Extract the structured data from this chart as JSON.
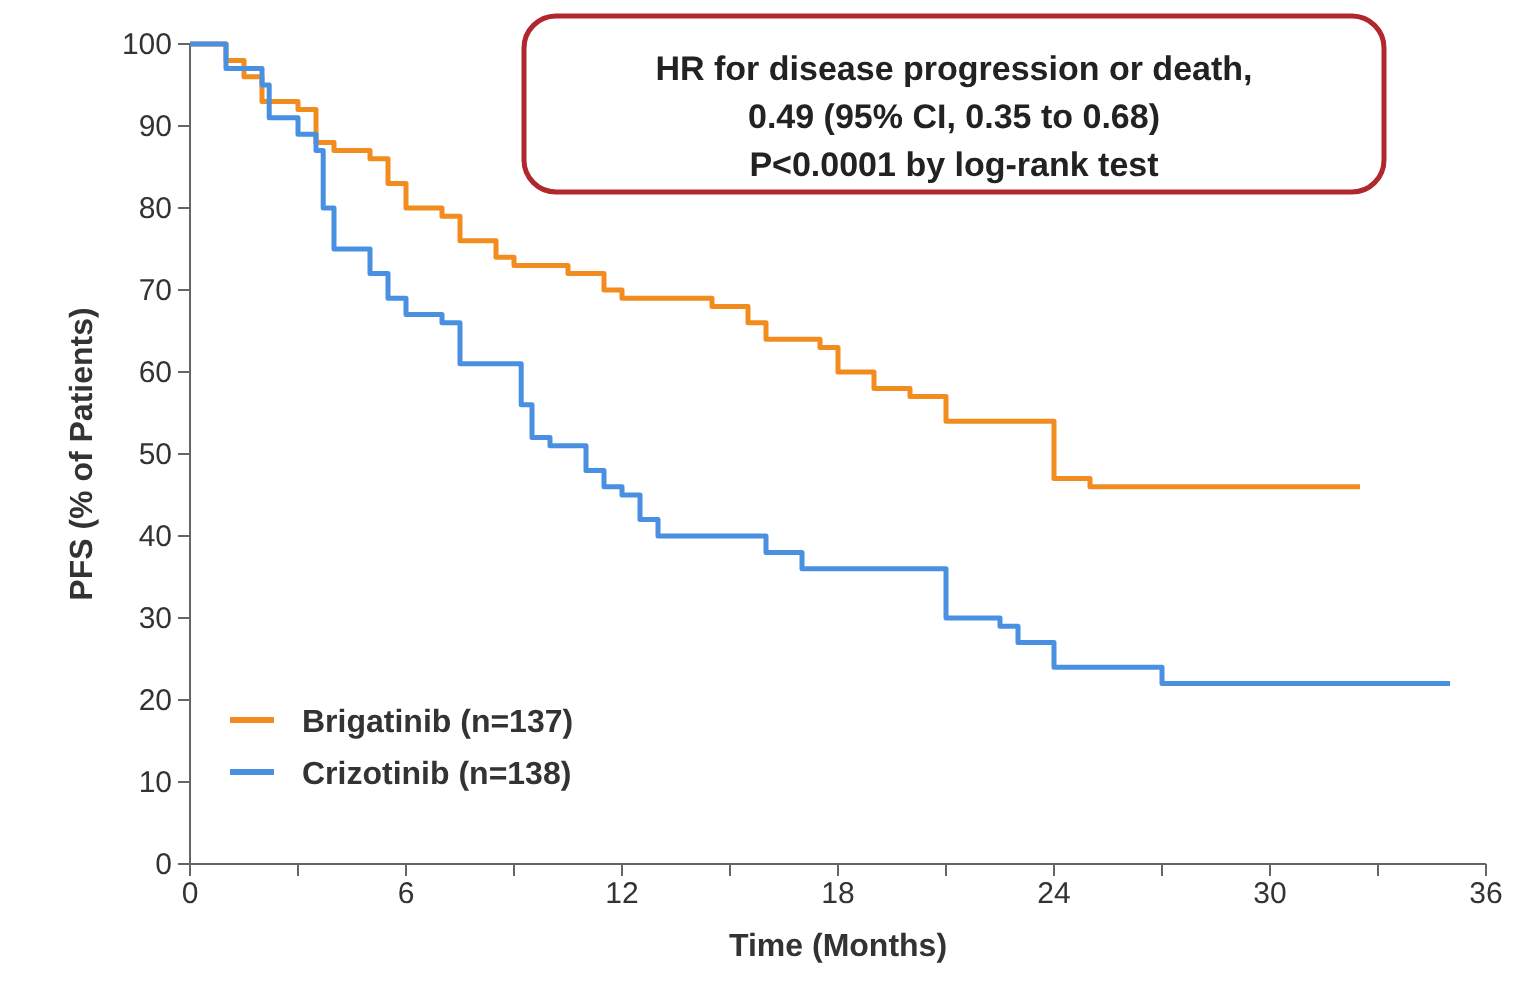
{
  "chart_data": {
    "type": "step",
    "xlabel": "Time (Months)",
    "ylabel": "PFS (% of Patients)",
    "annotations": [
      "HR for disease progression or death,",
      "0.49 (95%  CI, 0.35 to 0.68)",
      "P<0.0001 by log-rank test"
    ],
    "xlim": [
      0,
      36
    ],
    "xticks": [
      0,
      {
        "value": 3,
        "label": null
      },
      6,
      {
        "value": 9,
        "label": null
      },
      12,
      {
        "value": 15,
        "label": null
      },
      18,
      {
        "value": 21,
        "label": null
      },
      24,
      {
        "value": 27,
        "label": null
      },
      30,
      {
        "value": 33,
        "label": null
      },
      36
    ],
    "ylim": [
      0,
      100
    ],
    "yticks": [
      0,
      10,
      20,
      30,
      40,
      50,
      60,
      70,
      80,
      90,
      100
    ],
    "legend": "bottom left",
    "marker": "none",
    "line_style": "solid",
    "grid": false,
    "series": [
      {
        "name": "Brigatinib (n=137)",
        "color": "#f28c1e",
        "x": [
          0,
          1,
          1.5,
          2,
          3,
          3.5,
          4,
          5,
          5.5,
          6,
          7,
          7.5,
          8.5,
          9,
          10.5,
          11.5,
          12,
          14.5,
          15.5,
          16,
          17.5,
          18,
          19,
          20,
          21,
          23.5,
          24,
          25,
          32.5
        ],
        "values": [
          100,
          98,
          96,
          93,
          92,
          88,
          87,
          86,
          83,
          80,
          79,
          76,
          74,
          73,
          72,
          70,
          69,
          68,
          66,
          64,
          63,
          60,
          58,
          57,
          54,
          54,
          47,
          46,
          46
        ]
      },
      {
        "name": "Crizotinib (n=138)",
        "color": "#4a90e2",
        "x": [
          0,
          1,
          2,
          2.2,
          3,
          3.5,
          3.7,
          4,
          5,
          5.5,
          6,
          7,
          7.5,
          9,
          9.2,
          9.5,
          10,
          11,
          11.5,
          12,
          12.5,
          13,
          16,
          17,
          21,
          22.5,
          23,
          24,
          27,
          35
        ],
        "values": [
          100,
          97,
          95,
          91,
          89,
          87,
          80,
          75,
          72,
          69,
          67,
          66,
          61,
          61,
          56,
          52,
          51,
          48,
          46,
          45,
          42,
          40,
          38,
          36,
          30,
          29,
          27,
          24,
          22,
          22
        ]
      }
    ]
  }
}
